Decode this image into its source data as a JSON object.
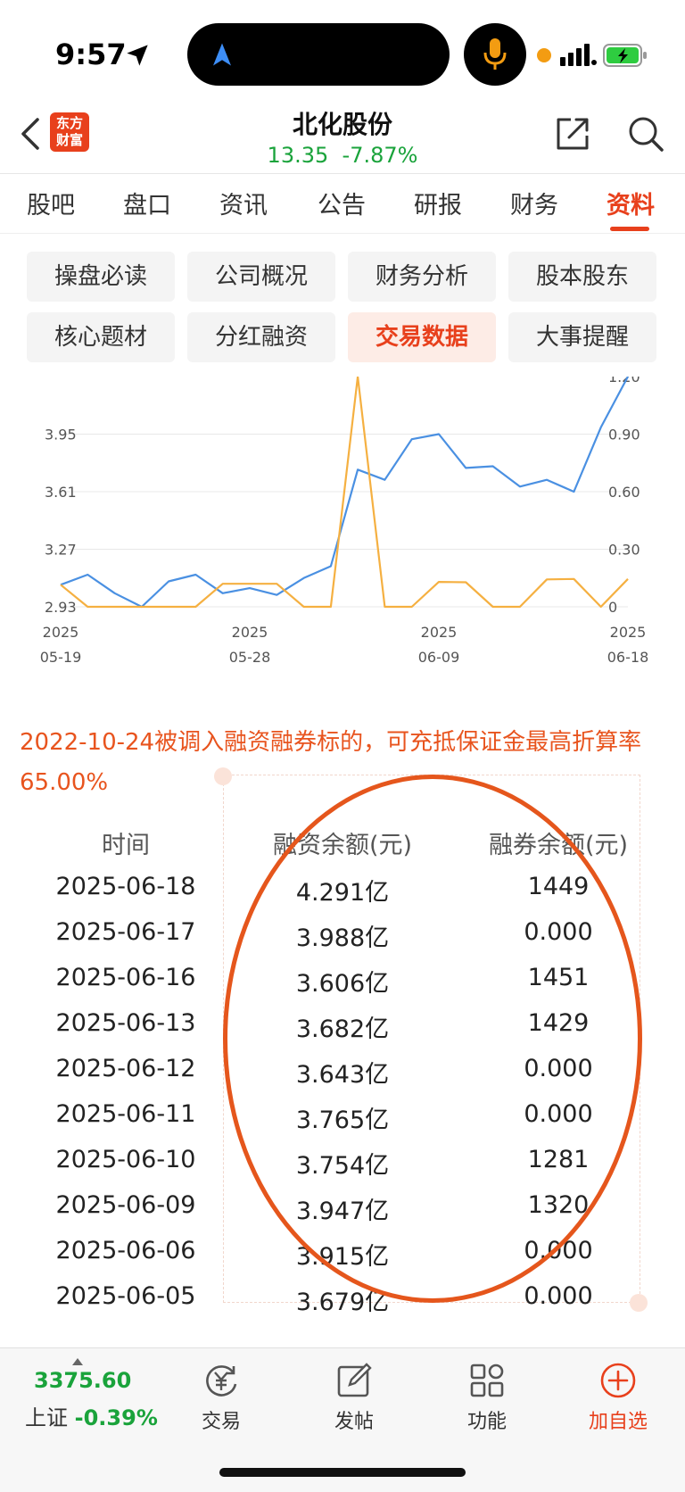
{
  "status_bar": {
    "time": "9:57"
  },
  "header": {
    "logo_line1": "东方",
    "logo_line2": "财富",
    "stock_name": "北化股份",
    "price": "13.35",
    "change_pct": "-7.87%",
    "accent_color": "#e8401c",
    "down_color": "#1aa33b"
  },
  "tabs": [
    "股吧",
    "盘口",
    "资讯",
    "公告",
    "研报",
    "财务",
    "资料"
  ],
  "active_tab": "资料",
  "sub_buttons": [
    "操盘必读",
    "公司概况",
    "财务分析",
    "股本股东",
    "核心题材",
    "分红融资",
    "交易数据",
    "大事提醒"
  ],
  "active_sub_button": "交易数据",
  "chart_data": {
    "type": "line",
    "x": [
      "2025-05-19",
      "2025-05-20",
      "2025-05-21",
      "2025-05-22",
      "2025-05-23",
      "2025-05-26",
      "2025-05-27",
      "2025-05-28",
      "2025-05-29",
      "2025-05-30",
      "2025-06-03",
      "2025-06-04",
      "2025-06-05",
      "2025-06-06",
      "2025-06-09",
      "2025-06-10",
      "2025-06-11",
      "2025-06-12",
      "2025-06-13",
      "2025-06-16",
      "2025-06-17",
      "2025-06-18"
    ],
    "x_tick_labels": [
      {
        "year": "2025",
        "date": "05-19"
      },
      {
        "year": "2025",
        "date": "05-28"
      },
      {
        "year": "2025",
        "date": "06-09"
      },
      {
        "year": "2025",
        "date": "06-18"
      }
    ],
    "left_ticks": [
      "2.93",
      "3.27",
      "3.61",
      "3.95"
    ],
    "right_ticks": [
      "0",
      "0.30",
      "0.60",
      "0.90",
      "1.20"
    ],
    "left_ylim": [
      2.93,
      4.29
    ],
    "right_ylim": [
      0,
      1.2
    ],
    "series": [
      {
        "color": "#4a90e2",
        "axis": "left",
        "values": [
          3.06,
          3.12,
          3.01,
          2.93,
          3.08,
          3.12,
          3.01,
          3.04,
          3.0,
          3.1,
          3.17,
          3.74,
          3.68,
          3.92,
          3.95,
          3.75,
          3.76,
          3.64,
          3.68,
          3.61,
          3.99,
          4.29
        ]
      },
      {
        "color": "#f5b041",
        "axis": "right",
        "values": [
          0.115,
          0,
          0,
          0,
          0,
          0,
          0.12,
          0.12,
          0.12,
          0,
          0,
          1.2,
          0,
          0,
          0.13,
          0.128,
          0,
          0,
          0.143,
          0.145,
          0,
          0.145
        ]
      }
    ],
    "grid": true
  },
  "info_text": "2022-10-24被调入融资融券标的，可充抵保证金最高折算率65.00%",
  "table": {
    "headers": [
      "时间",
      "融资余额(元)",
      "融券余额(元)"
    ],
    "rows": [
      [
        "2025-06-18",
        "4.291亿",
        "1449"
      ],
      [
        "2025-06-17",
        "3.988亿",
        "0.000"
      ],
      [
        "2025-06-16",
        "3.606亿",
        "1451"
      ],
      [
        "2025-06-13",
        "3.682亿",
        "1429"
      ],
      [
        "2025-06-12",
        "3.643亿",
        "0.000"
      ],
      [
        "2025-06-11",
        "3.765亿",
        "0.000"
      ],
      [
        "2025-06-10",
        "3.754亿",
        "1281"
      ],
      [
        "2025-06-09",
        "3.947亿",
        "1320"
      ],
      [
        "2025-06-06",
        "3.915亿",
        "0.000"
      ],
      [
        "2025-06-05",
        "3.679亿",
        "0.000"
      ]
    ]
  },
  "bottom_bar": {
    "index_value": "3375.60",
    "index_name": "上证",
    "index_change": "-0.39%",
    "items": [
      {
        "label": "交易",
        "icon": "trade-icon"
      },
      {
        "label": "发帖",
        "icon": "compose-icon"
      },
      {
        "label": "功能",
        "icon": "grid-icon"
      },
      {
        "label": "加自选",
        "icon": "add-watchlist-icon"
      }
    ]
  }
}
